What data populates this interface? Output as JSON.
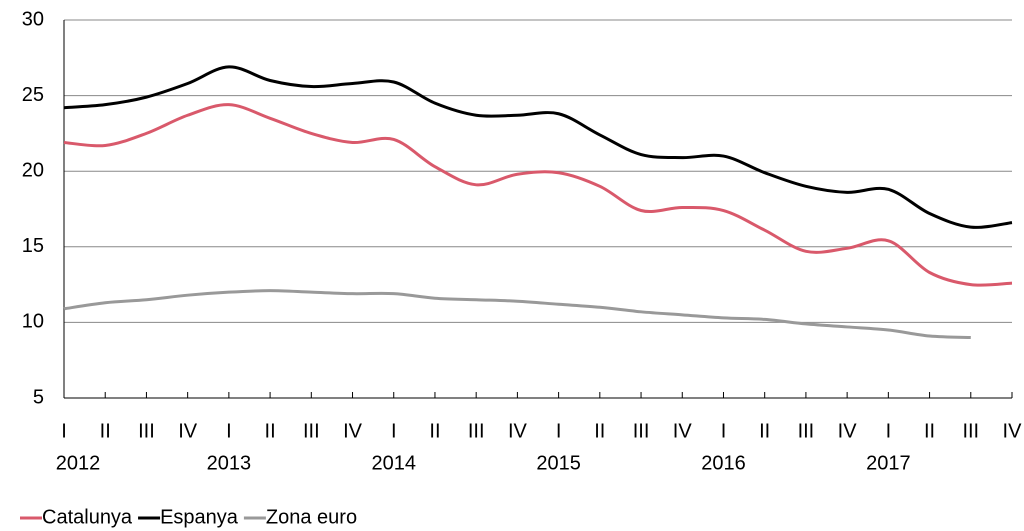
{
  "chart_data": {
    "type": "line",
    "categories": [
      "I",
      "II",
      "III",
      "IV",
      "I",
      "II",
      "III",
      "IV",
      "I",
      "II",
      "III",
      "IV",
      "I",
      "II",
      "III",
      "IV",
      "I",
      "II",
      "III",
      "IV",
      "I",
      "II",
      "III",
      "IV"
    ],
    "year_labels": [
      "2012",
      "2013",
      "2014",
      "2015",
      "2016",
      "2017"
    ],
    "series": [
      {
        "name": "Catalunya",
        "color": "#d9596b",
        "values": [
          21.9,
          21.7,
          22.5,
          23.7,
          24.4,
          23.5,
          22.5,
          21.9,
          22.1,
          20.3,
          19.1,
          19.8,
          19.9,
          19.0,
          17.4,
          17.6,
          17.4,
          16.1,
          14.7,
          14.9,
          15.4,
          13.3,
          12.5,
          12.6
        ]
      },
      {
        "name": "Espanya",
        "color": "#000000",
        "values": [
          24.2,
          24.4,
          24.9,
          25.8,
          26.9,
          26.0,
          25.6,
          25.8,
          25.9,
          24.5,
          23.7,
          23.7,
          23.8,
          22.4,
          21.1,
          20.9,
          21.0,
          19.9,
          19.0,
          18.6,
          18.8,
          17.2,
          16.3,
          16.6
        ]
      },
      {
        "name": "Zona euro",
        "color": "#999999",
        "values": [
          10.9,
          11.3,
          11.5,
          11.8,
          12.0,
          12.1,
          12.0,
          11.9,
          11.9,
          11.6,
          11.5,
          11.4,
          11.2,
          11.0,
          10.7,
          10.5,
          10.3,
          10.2,
          9.9,
          9.7,
          9.5,
          9.1,
          9.0,
          null
        ]
      }
    ],
    "ylim": [
      5,
      30
    ],
    "yticks": [
      5,
      10,
      15,
      20,
      25,
      30
    ],
    "grid": true
  }
}
